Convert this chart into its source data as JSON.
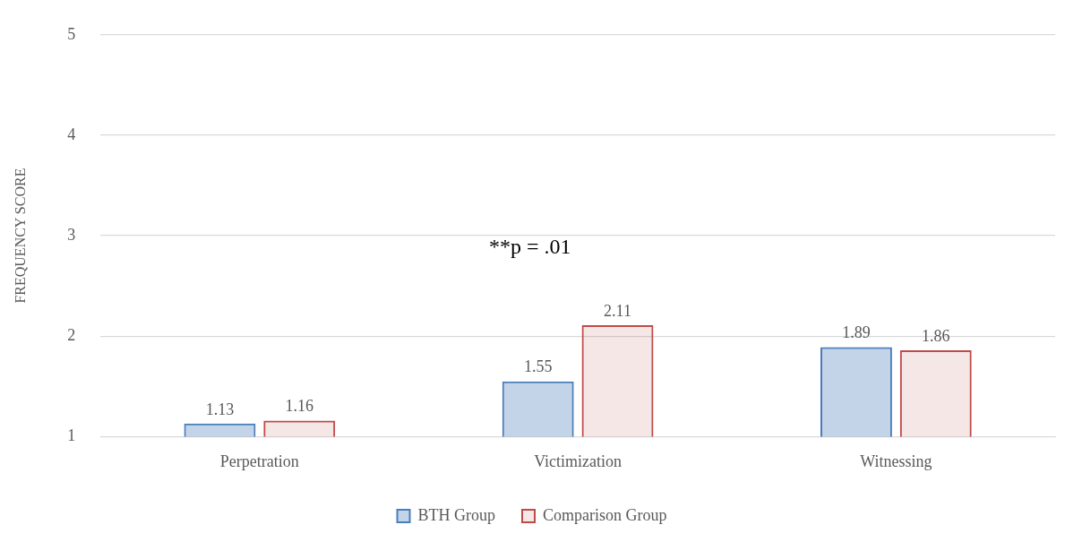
{
  "chart_data": {
    "type": "bar",
    "ylabel": "FREQUENCY SCORE",
    "categories": [
      "Perpetration",
      "Victimization",
      "Witnessing"
    ],
    "series": [
      {
        "name": "BTH Group",
        "color": "#4a7ebb",
        "values": [
          1.13,
          1.55,
          1.89
        ]
      },
      {
        "name": "Comparison Group",
        "color": "#be4b48",
        "values": [
          1.16,
          2.11,
          1.86
        ]
      }
    ],
    "ylim": [
      1,
      5
    ],
    "yticks": [
      1,
      2,
      3,
      4,
      5
    ],
    "grid": "y",
    "legend": "bottom",
    "data_labels": true,
    "annotations": [
      "**p = .01"
    ]
  }
}
